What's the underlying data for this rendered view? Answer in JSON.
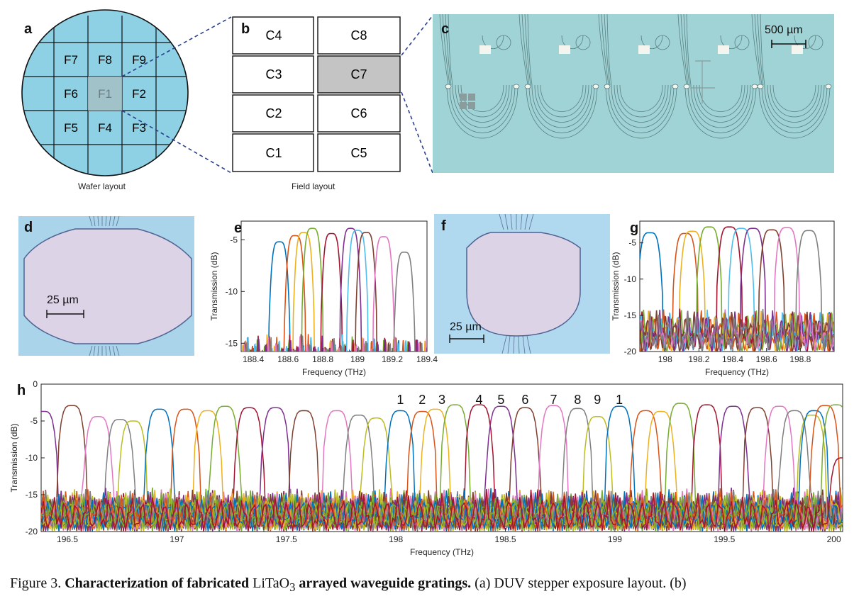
{
  "panels": {
    "a": {
      "letter": "a",
      "caption": "Wafer layout",
      "fields": [
        "F7",
        "F8",
        "F9",
        "F6",
        "F1",
        "F2",
        "F5",
        "F4",
        "F3"
      ]
    },
    "b": {
      "letter": "b",
      "caption": "Field layout",
      "cells": [
        "C4",
        "C8",
        "C3",
        "C7",
        "C2",
        "C6",
        "C1",
        "C5"
      ],
      "highlighted": "C7"
    },
    "c": {
      "letter": "c",
      "scalebar": "500 µm"
    },
    "d": {
      "letter": "d",
      "scalebar": "25 µm"
    },
    "e": {
      "letter": "e"
    },
    "f": {
      "letter": "f",
      "scalebar": "25 µm"
    },
    "g": {
      "letter": "g"
    },
    "h": {
      "letter": "h",
      "channel_labels": [
        "1",
        "2",
        "3",
        "4",
        "5",
        "6",
        "7",
        "8",
        "9",
        "1"
      ]
    }
  },
  "colors": {
    "wafer": "#8ed0e4",
    "micrograph_bg": "#a9d4ea",
    "series": [
      "#0072bd",
      "#d95319",
      "#edb120",
      "#7e2f8e",
      "#77ac30",
      "#4dbeee",
      "#a2142f",
      "#e377c2",
      "#7f7f7f",
      "#bcbd22"
    ]
  },
  "chart_data": [
    {
      "panel": "e",
      "type": "line",
      "xlabel": "Frequency (THz)",
      "ylabel": "Transmission (dB)",
      "xlim": [
        188.33,
        189.4
      ],
      "ylim": [
        -15.8,
        -3.2
      ],
      "xticks": [
        "188.4",
        "188.6",
        "188.8",
        "189",
        "189.2",
        "189.4"
      ],
      "yticks": [
        "-5",
        "-10",
        "-15"
      ],
      "series": [
        {
          "color": "#0072bd",
          "center": 188.55,
          "peak": -5.2
        },
        {
          "color": "#d95319",
          "center": 188.64,
          "peak": -4.6
        },
        {
          "color": "#edb120",
          "center": 188.69,
          "peak": -4.3
        },
        {
          "color": "#77ac30",
          "center": 188.74,
          "peak": -3.9
        },
        {
          "color": "#a2142f",
          "center": 188.85,
          "peak": -4.4
        },
        {
          "color": "#7e2f8e",
          "center": 188.96,
          "peak": -3.9
        },
        {
          "color": "#4dbeee",
          "center": 189.0,
          "peak": -4.1
        },
        {
          "color": "#7f3f2f",
          "center": 189.05,
          "peak": -4.3
        },
        {
          "color": "#e377c2",
          "center": 189.15,
          "peak": -4.7
        },
        {
          "color": "#7f7f7f",
          "center": 189.27,
          "peak": -6.2
        }
      ]
    },
    {
      "panel": "g",
      "type": "line",
      "xlabel": "Frequency (THz)",
      "ylabel": "Transmission (dB)",
      "xlim": [
        197.85,
        199.0
      ],
      "ylim": [
        -20,
        -2
      ],
      "xticks": [
        "198",
        "198.2",
        "198.4",
        "198.6",
        "198.8"
      ],
      "yticks": [
        "-5",
        "-10",
        "-15",
        "-20"
      ],
      "series": [
        {
          "color": "#0072bd",
          "center": 197.91,
          "peak": -3.6
        },
        {
          "color": "#d95319",
          "center": 198.12,
          "peak": -3.7
        },
        {
          "color": "#edb120",
          "center": 198.16,
          "peak": -3.4
        },
        {
          "color": "#77ac30",
          "center": 198.26,
          "peak": -2.8
        },
        {
          "color": "#a2142f",
          "center": 198.38,
          "peak": -2.8
        },
        {
          "color": "#4dbeee",
          "center": 198.45,
          "peak": -3.0
        },
        {
          "color": "#7e2f8e",
          "center": 198.52,
          "peak": -3.0
        },
        {
          "color": "#7f3f2f",
          "center": 198.63,
          "peak": -3.2
        },
        {
          "color": "#e377c2",
          "center": 198.72,
          "peak": -2.9
        },
        {
          "color": "#7f7f7f",
          "center": 198.85,
          "peak": -3.3
        }
      ]
    },
    {
      "panel": "h",
      "type": "line",
      "xlabel": "Frequency (THz)",
      "ylabel": "Transmission (dB)",
      "xlim": [
        196.38,
        200.04
      ],
      "ylim": [
        -20,
        0
      ],
      "xticks": [
        "196.5",
        "197",
        "197.5",
        "198",
        "198.5",
        "199",
        "199.5",
        "200"
      ],
      "yticks": [
        "0",
        "-5",
        "-10",
        "-15",
        "-20"
      ],
      "series": [
        {
          "color": "#7e2f8e",
          "center": 196.39,
          "peak": -3.7
        },
        {
          "color": "#7f3f2f",
          "center": 196.52,
          "peak": -2.9
        },
        {
          "color": "#e377c2",
          "center": 196.64,
          "peak": -4.4
        },
        {
          "color": "#7f7f7f",
          "center": 196.74,
          "peak": -4.8
        },
        {
          "color": "#bcbd22",
          "center": 196.8,
          "peak": -5.0
        },
        {
          "color": "#0072bd",
          "center": 196.92,
          "peak": -3.4
        },
        {
          "color": "#d95319",
          "center": 197.04,
          "peak": -3.4
        },
        {
          "color": "#edb120",
          "center": 197.14,
          "peak": -3.6
        },
        {
          "color": "#77ac30",
          "center": 197.22,
          "peak": -3.0
        },
        {
          "color": "#a2142f",
          "center": 197.33,
          "peak": -3.2
        },
        {
          "color": "#7e2f8e",
          "center": 197.45,
          "peak": -3.2
        },
        {
          "color": "#7f3f2f",
          "center": 197.58,
          "peak": -3.6
        },
        {
          "color": "#e377c2",
          "center": 197.73,
          "peak": -3.6
        },
        {
          "color": "#7f7f7f",
          "center": 197.83,
          "peak": -4.2
        },
        {
          "color": "#bcbd22",
          "center": 197.91,
          "peak": -4.6
        },
        {
          "color": "#0072bd",
          "center": 198.02,
          "peak": -3.6
        },
        {
          "color": "#d95319",
          "center": 198.12,
          "peak": -3.7
        },
        {
          "color": "#edb120",
          "center": 198.18,
          "peak": -3.4
        },
        {
          "color": "#77ac30",
          "center": 198.27,
          "peak": -2.8
        },
        {
          "color": "#a2142f",
          "center": 198.38,
          "peak": -2.8
        },
        {
          "color": "#7e2f8e",
          "center": 198.48,
          "peak": -3.0
        },
        {
          "color": "#7f3f2f",
          "center": 198.59,
          "peak": -3.2
        },
        {
          "color": "#e377c2",
          "center": 198.72,
          "peak": -2.9
        },
        {
          "color": "#7f7f7f",
          "center": 198.83,
          "peak": -3.3
        },
        {
          "color": "#bcbd22",
          "center": 198.92,
          "peak": -4.4
        },
        {
          "color": "#0072bd",
          "center": 199.02,
          "peak": -3.0
        },
        {
          "color": "#d95319",
          "center": 199.14,
          "peak": -3.6
        },
        {
          "color": "#edb120",
          "center": 199.21,
          "peak": -3.7
        },
        {
          "color": "#77ac30",
          "center": 199.3,
          "peak": -2.6
        },
        {
          "color": "#a2142f",
          "center": 199.42,
          "peak": -2.8
        },
        {
          "color": "#7e2f8e",
          "center": 199.54,
          "peak": -3.0
        },
        {
          "color": "#7f3f2f",
          "center": 199.65,
          "peak": -3.2
        },
        {
          "color": "#e377c2",
          "center": 199.75,
          "peak": -3.0
        },
        {
          "color": "#7f7f7f",
          "center": 199.82,
          "peak": -3.6
        },
        {
          "color": "#bcbd22",
          "center": 199.9,
          "peak": -4.2
        },
        {
          "color": "#0072bd",
          "center": 199.91,
          "peak": -3.6
        },
        {
          "color": "#d95319",
          "center": 199.96,
          "peak": -2.9
        },
        {
          "color": "#77ac30",
          "center": 200.01,
          "peak": -2.8
        },
        {
          "color": "#a2142f",
          "center": 200.04,
          "peak": -10.0
        }
      ]
    }
  ],
  "caption": {
    "prefix": "Figure 3.",
    "bold_1": "Characterization of fabricated",
    "material": "LiTaO",
    "subscript": "3",
    "bold_2": "arrayed waveguide gratings.",
    "rest": "(a) DUV stepper exposure layout. (b)"
  }
}
